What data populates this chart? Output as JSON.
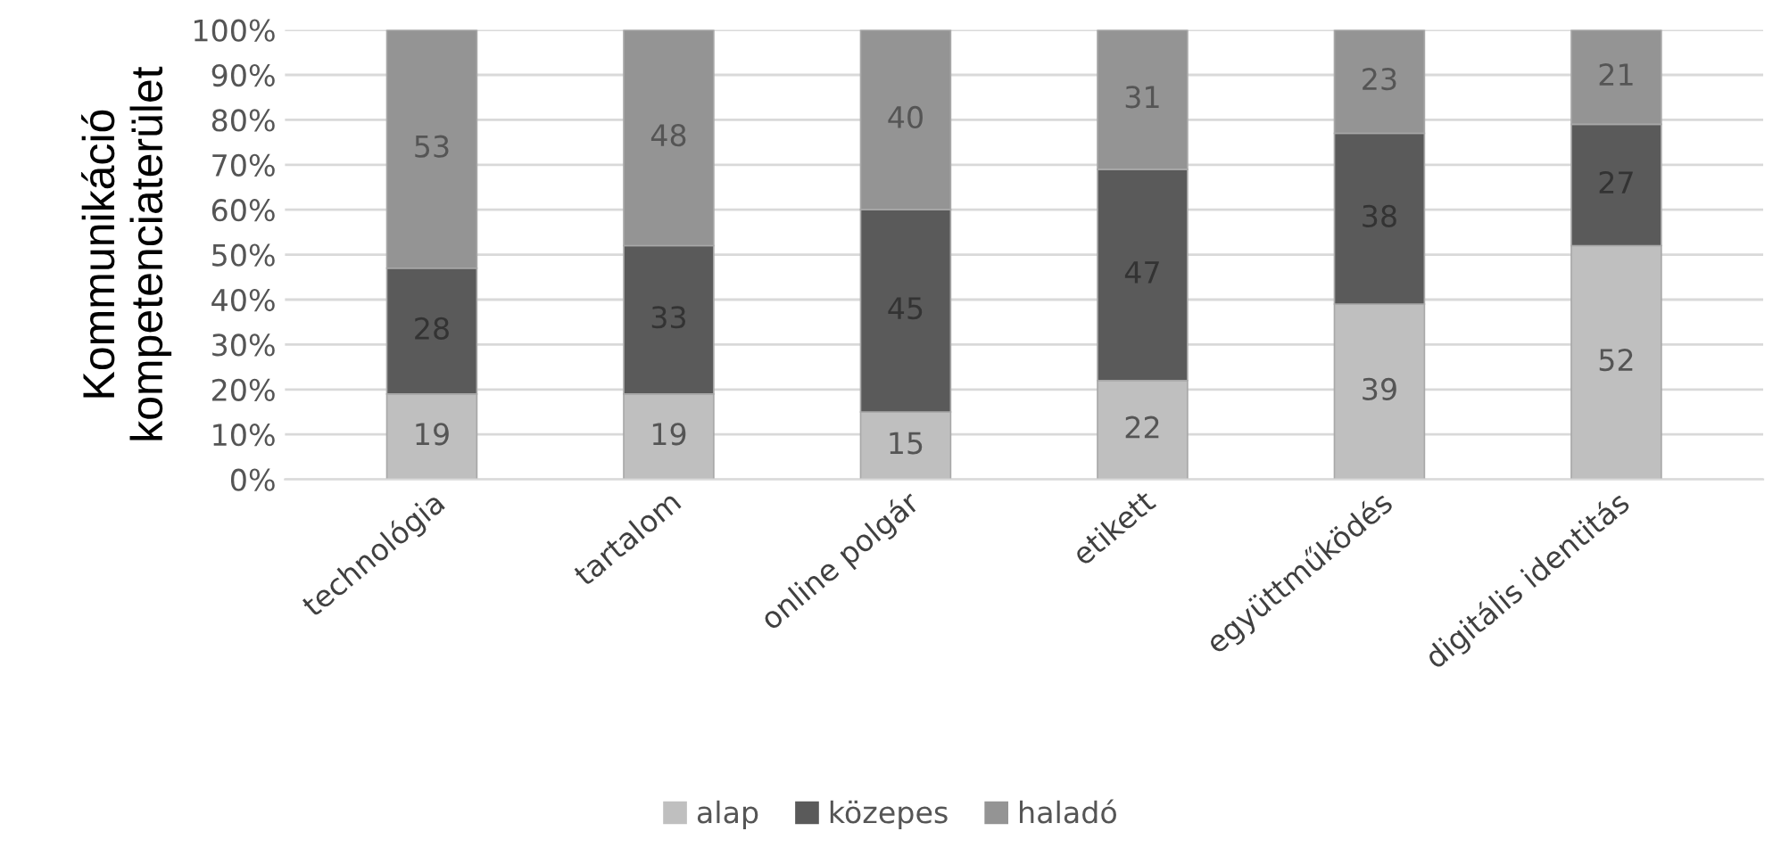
{
  "chart_data": {
    "type": "bar",
    "stacked": true,
    "ylabel": "Kommunikáció\nkompetenciaterület",
    "categories": [
      "technológia",
      "tartalom",
      "online polgár",
      "etikett",
      "együttműködés",
      "digitális identitás"
    ],
    "series": [
      {
        "name": "alap",
        "color": "#bfbfbf",
        "values": [
          19,
          19,
          15,
          22,
          39,
          52
        ]
      },
      {
        "name": "közepes",
        "color": "#5a5a5a",
        "values": [
          28,
          33,
          45,
          47,
          38,
          27
        ]
      },
      {
        "name": "haladó",
        "color": "#949494",
        "values": [
          53,
          48,
          40,
          31,
          23,
          21
        ]
      }
    ],
    "ylim": [
      0,
      100
    ],
    "yticks": [
      {
        "value": 0,
        "label": "0%"
      },
      {
        "value": 10,
        "label": "10%"
      },
      {
        "value": 20,
        "label": "20%"
      },
      {
        "value": 30,
        "label": "30%"
      },
      {
        "value": 40,
        "label": "40%"
      },
      {
        "value": 50,
        "label": "50%"
      },
      {
        "value": 60,
        "label": "60%"
      },
      {
        "value": 70,
        "label": "70%"
      },
      {
        "value": 80,
        "label": "80%"
      },
      {
        "value": 90,
        "label": "90%"
      },
      {
        "value": 100,
        "label": "100%"
      }
    ],
    "grid": "y",
    "legend": "bottom",
    "data_labels": true
  }
}
